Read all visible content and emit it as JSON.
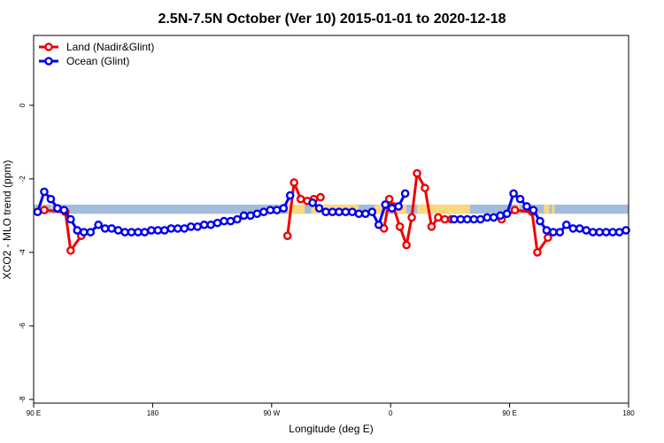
{
  "chart_data": {
    "type": "line",
    "title": "2.5N-7.5N October (Ver 10)   2015-01-01 to 2020-12-18",
    "xlabel": "Longitude (deg E)",
    "ylabel": "XCO2 - MLO trend (ppm)",
    "xlim": [
      90,
      540
    ],
    "ylim": [
      -8.1,
      1.9
    ],
    "x_ticks": [
      {
        "value": 90,
        "label": "90 E"
      },
      {
        "value": 180,
        "label": "180"
      },
      {
        "value": 270,
        "label": "90 W"
      },
      {
        "value": 360,
        "label": "0"
      },
      {
        "value": 450,
        "label": "90 E"
      },
      {
        "value": 540,
        "label": "180"
      }
    ],
    "y_ticks": [
      {
        "value": 0,
        "label": "0"
      },
      {
        "value": -2,
        "label": "-2"
      },
      {
        "value": -4,
        "label": "-4"
      },
      {
        "value": -6,
        "label": "-6"
      },
      {
        "value": -8,
        "label": "-8"
      }
    ],
    "legend_position": "top-left",
    "band": {
      "y_low": -2.95,
      "y_high": -2.7,
      "ocean_color": "#a3bcdd",
      "land_color": "#fdd87c",
      "land_segments": [
        [
          95,
          97
        ],
        [
          103,
          104
        ],
        [
          106,
          107
        ],
        [
          282,
          295
        ],
        [
          300,
          336
        ],
        [
          348,
          357
        ],
        [
          362,
          372
        ],
        [
          380,
          420
        ],
        [
          456,
          458
        ],
        [
          461,
          464
        ],
        [
          476,
          480
        ],
        [
          482,
          484
        ]
      ]
    },
    "series": [
      {
        "name": "Land (Nadir&Glint)",
        "color": "#ee0000",
        "segments": [
          [
            [
              98,
              -2.85
            ],
            [
              114,
              -2.9
            ],
            [
              118,
              -3.95
            ],
            [
              126,
              -3.55
            ]
          ],
          [
            [
              282,
              -3.55
            ],
            [
              287,
              -2.1
            ],
            [
              292,
              -2.55
            ],
            [
              297,
              -2.6
            ],
            [
              302,
              -2.55
            ],
            [
              307,
              -2.5
            ]
          ],
          [
            [
              355,
              -3.35
            ],
            [
              359,
              -2.55
            ],
            [
              362,
              -2.75
            ],
            [
              367,
              -3.3
            ],
            [
              372,
              -3.8
            ],
            [
              376,
              -3.05
            ],
            [
              380,
              -1.85
            ],
            [
              386,
              -2.25
            ],
            [
              391,
              -3.3
            ],
            [
              396,
              -3.05
            ],
            [
              401,
              -3.1
            ],
            [
              406,
              -3.1
            ]
          ],
          [
            [
              444,
              -3.1
            ],
            [
              454,
              -2.85
            ],
            [
              467,
              -2.9
            ],
            [
              471,
              -4.0
            ],
            [
              479,
              -3.6
            ]
          ]
        ]
      },
      {
        "name": "Ocean (Glint)",
        "color": "#0000ee",
        "segments": [
          [
            [
              93,
              -2.9
            ],
            [
              98,
              -2.35
            ],
            [
              103,
              -2.55
            ],
            [
              108,
              -2.8
            ],
            [
              113,
              -2.85
            ],
            [
              118,
              -3.1
            ],
            [
              123,
              -3.4
            ],
            [
              128,
              -3.45
            ],
            [
              133,
              -3.45
            ],
            [
              139,
              -3.25
            ],
            [
              144,
              -3.35
            ],
            [
              149,
              -3.35
            ],
            [
              154,
              -3.4
            ],
            [
              159,
              -3.45
            ],
            [
              164,
              -3.45
            ],
            [
              169,
              -3.45
            ],
            [
              174,
              -3.45
            ],
            [
              179,
              -3.4
            ],
            [
              184,
              -3.4
            ],
            [
              189,
              -3.4
            ],
            [
              194,
              -3.35
            ],
            [
              199,
              -3.35
            ],
            [
              204,
              -3.35
            ],
            [
              209,
              -3.3
            ],
            [
              214,
              -3.3
            ],
            [
              219,
              -3.25
            ],
            [
              224,
              -3.25
            ],
            [
              229,
              -3.2
            ],
            [
              234,
              -3.15
            ],
            [
              239,
              -3.15
            ],
            [
              244,
              -3.1
            ],
            [
              249,
              -3.0
            ],
            [
              254,
              -3.0
            ],
            [
              259,
              -2.95
            ],
            [
              264,
              -2.9
            ],
            [
              269,
              -2.85
            ],
            [
              274,
              -2.85
            ],
            [
              279,
              -2.8
            ],
            [
              284,
              -2.45
            ]
          ],
          [
            [
              301,
              -2.65
            ],
            [
              306,
              -2.8
            ],
            [
              311,
              -2.9
            ],
            [
              316,
              -2.9
            ],
            [
              321,
              -2.9
            ],
            [
              326,
              -2.9
            ],
            [
              331,
              -2.9
            ],
            [
              336,
              -2.95
            ],
            [
              341,
              -2.95
            ],
            [
              346,
              -2.9
            ],
            [
              351,
              -3.25
            ],
            [
              356,
              -2.7
            ],
            [
              361,
              -2.8
            ],
            [
              366,
              -2.75
            ],
            [
              371,
              -2.4
            ]
          ],
          [
            [
              408,
              -3.1
            ],
            [
              413,
              -3.1
            ],
            [
              418,
              -3.1
            ],
            [
              423,
              -3.1
            ],
            [
              428,
              -3.1
            ],
            [
              433,
              -3.05
            ],
            [
              438,
              -3.05
            ],
            [
              443,
              -3.0
            ],
            [
              448,
              -2.95
            ],
            [
              453,
              -2.4
            ],
            [
              458,
              -2.55
            ],
            [
              463,
              -2.75
            ],
            [
              468,
              -2.85
            ],
            [
              473,
              -3.15
            ],
            [
              478,
              -3.4
            ],
            [
              483,
              -3.45
            ],
            [
              488,
              -3.45
            ],
            [
              493,
              -3.25
            ],
            [
              498,
              -3.35
            ],
            [
              503,
              -3.35
            ],
            [
              508,
              -3.4
            ],
            [
              513,
              -3.45
            ],
            [
              518,
              -3.45
            ],
            [
              523,
              -3.45
            ],
            [
              528,
              -3.45
            ],
            [
              533,
              -3.45
            ],
            [
              538,
              -3.4
            ]
          ]
        ]
      }
    ]
  }
}
